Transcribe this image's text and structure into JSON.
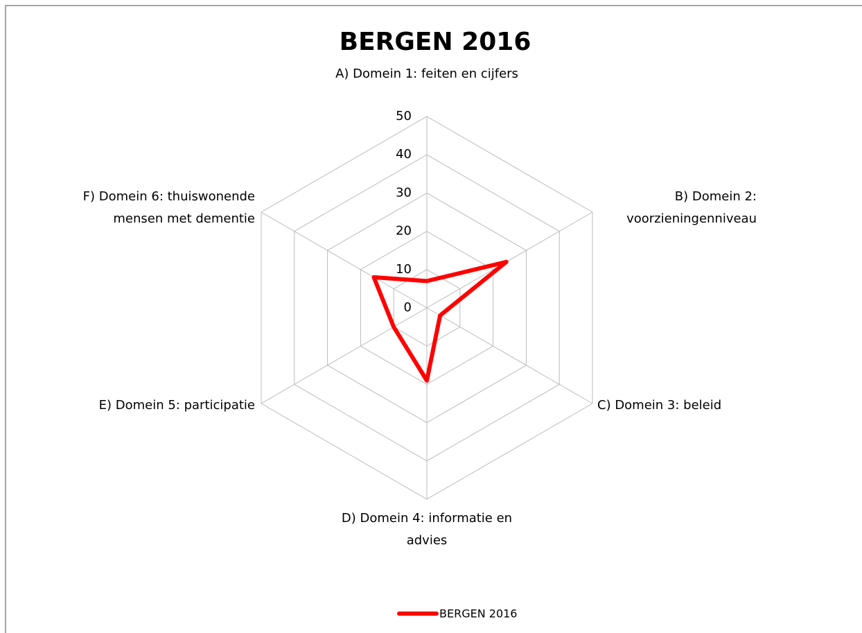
{
  "chart_data": {
    "type": "radar",
    "title": "BERGEN 2016",
    "categories": [
      "A) Domein 1: feiten en cijfers",
      "B) Domein 2: voorzieningenniveau",
      "C) Domein 3: beleid",
      "D) Domein 4: informatie en advies",
      "E) Domein 5: participatie",
      "F) Domein 6: thuiswonende mensen met dementie"
    ],
    "series": [
      {
        "name": "BERGEN 2016",
        "color": "#ff0000",
        "values": [
          7,
          24,
          4,
          19,
          10,
          16
        ]
      }
    ],
    "ylim": [
      0,
      50
    ],
    "yticks": [
      0,
      10,
      20,
      30,
      40,
      50
    ],
    "grid": true,
    "legend": "bottom"
  }
}
